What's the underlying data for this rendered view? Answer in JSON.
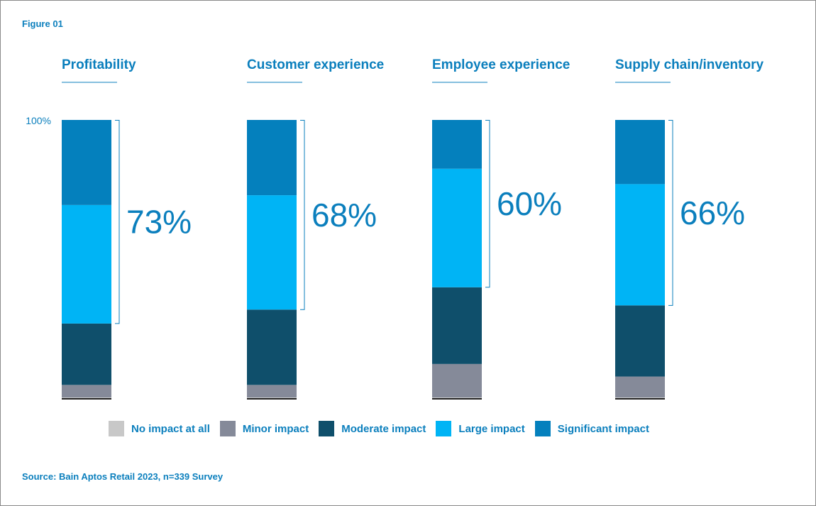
{
  "figure_label": "Figure 01",
  "source": "Source: Bain Aptos Retail 2023, n=339 Survey",
  "chart_data": {
    "type": "bar",
    "stacked": true,
    "orientation": "vertical",
    "normalized": true,
    "y_tick_label": "100%",
    "ylim": [
      0,
      100
    ],
    "grid": false,
    "legend_position": "bottom",
    "categories": [
      "Profitability",
      "Customer experience",
      "Employee experience",
      "Supply chain/inventory"
    ],
    "series": [
      {
        "name": "No impact at all",
        "color": "#c8c8c8",
        "values": [
          0.5,
          0.5,
          0.5,
          0.5
        ]
      },
      {
        "name": "Minor impact",
        "color": "#858a99",
        "values": [
          4.5,
          4.5,
          12,
          7.5
        ]
      },
      {
        "name": "Moderate impact",
        "color": "#0f4f6b",
        "values": [
          22,
          27,
          27.5,
          25.5
        ]
      },
      {
        "name": "Large impact",
        "color": "#00b4f5",
        "values": [
          42.5,
          41,
          42.5,
          43.5
        ]
      },
      {
        "name": "Significant impact",
        "color": "#0480bd",
        "values": [
          30.5,
          27,
          17.5,
          23
        ]
      }
    ],
    "combined_labels": [
      "73%",
      "68%",
      "60%",
      "66%"
    ]
  }
}
